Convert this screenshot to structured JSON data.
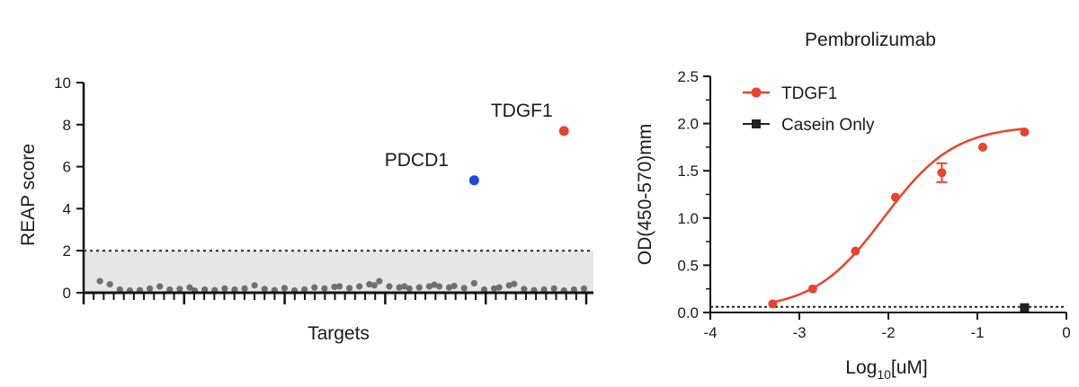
{
  "chart_data": [
    {
      "type": "scatter",
      "xlabel": "Targets",
      "ylabel": "REAP score",
      "ylim": [
        0,
        10
      ],
      "yticks": [
        0,
        2,
        4,
        6,
        8,
        10
      ],
      "threshold": 2,
      "x_range": [
        0,
        100
      ],
      "highlighted": [
        {
          "name": "TDGF1",
          "x": 95,
          "y": 7.7,
          "color": "#e8432d"
        },
        {
          "name": "PDCD1",
          "x": 77,
          "y": 5.35,
          "color": "#1a47e6"
        }
      ],
      "background_points": [
        {
          "x": 2,
          "y": 0.55
        },
        {
          "x": 4,
          "y": 0.4
        },
        {
          "x": 6,
          "y": 0.15
        },
        {
          "x": 8,
          "y": 0.1
        },
        {
          "x": 10,
          "y": 0.12
        },
        {
          "x": 12,
          "y": 0.2
        },
        {
          "x": 14,
          "y": 0.3
        },
        {
          "x": 16,
          "y": 0.15
        },
        {
          "x": 18,
          "y": 0.18
        },
        {
          "x": 20,
          "y": 0.25
        },
        {
          "x": 21,
          "y": 0.1
        },
        {
          "x": 23,
          "y": 0.15
        },
        {
          "x": 25,
          "y": 0.12
        },
        {
          "x": 27,
          "y": 0.2
        },
        {
          "x": 29,
          "y": 0.15
        },
        {
          "x": 31,
          "y": 0.2
        },
        {
          "x": 33,
          "y": 0.35
        },
        {
          "x": 35,
          "y": 0.18
        },
        {
          "x": 37,
          "y": 0.12
        },
        {
          "x": 39,
          "y": 0.22
        },
        {
          "x": 41,
          "y": 0.1
        },
        {
          "x": 43,
          "y": 0.15
        },
        {
          "x": 45,
          "y": 0.25
        },
        {
          "x": 47,
          "y": 0.2
        },
        {
          "x": 49,
          "y": 0.28
        },
        {
          "x": 50,
          "y": 0.3
        },
        {
          "x": 52,
          "y": 0.22
        },
        {
          "x": 54,
          "y": 0.3
        },
        {
          "x": 56,
          "y": 0.4
        },
        {
          "x": 57,
          "y": 0.35
        },
        {
          "x": 58,
          "y": 0.55
        },
        {
          "x": 60,
          "y": 0.3
        },
        {
          "x": 62,
          "y": 0.25
        },
        {
          "x": 63,
          "y": 0.3
        },
        {
          "x": 64,
          "y": 0.2
        },
        {
          "x": 66,
          "y": 0.25
        },
        {
          "x": 68,
          "y": 0.3
        },
        {
          "x": 69,
          "y": 0.38
        },
        {
          "x": 70,
          "y": 0.3
        },
        {
          "x": 72,
          "y": 0.25
        },
        {
          "x": 73,
          "y": 0.32
        },
        {
          "x": 75,
          "y": 0.22
        },
        {
          "x": 77,
          "y": 0.45
        },
        {
          "x": 79,
          "y": 0.15
        },
        {
          "x": 81,
          "y": 0.2
        },
        {
          "x": 82,
          "y": 0.25
        },
        {
          "x": 84,
          "y": 0.35
        },
        {
          "x": 85,
          "y": 0.42
        },
        {
          "x": 87,
          "y": 0.18
        },
        {
          "x": 89,
          "y": 0.12
        },
        {
          "x": 91,
          "y": 0.15
        },
        {
          "x": 93,
          "y": 0.2
        },
        {
          "x": 95,
          "y": 0.1
        },
        {
          "x": 97,
          "y": 0.15
        },
        {
          "x": 99,
          "y": 0.2
        }
      ]
    },
    {
      "type": "line",
      "title": "Pembrolizumab",
      "xlabel": "Log10[uM]",
      "ylabel": "OD(450-570)mm",
      "xlim": [
        -4,
        0
      ],
      "ylim": [
        0,
        2.5
      ],
      "xticks": [
        -4,
        -3,
        -2,
        -1,
        0
      ],
      "yticks": [
        0.0,
        0.5,
        1.0,
        1.5,
        2.0,
        2.5
      ],
      "ytick_labels": [
        "0.0",
        "0.5",
        "1.0",
        "1.5",
        "2.0",
        "2.5"
      ],
      "baseline": 0.06,
      "series": [
        {
          "name": "TDGF1",
          "color": "#e8432d",
          "marker": "circle",
          "x": [
            -3.3,
            -2.85,
            -2.37,
            -1.92,
            -1.4,
            -0.94,
            -0.47
          ],
          "y": [
            0.09,
            0.25,
            0.65,
            1.22,
            1.48,
            1.75,
            1.91
          ],
          "error": [
            0,
            0,
            0,
            0,
            0.1,
            0,
            0
          ],
          "fit": {
            "bottom": 0.03,
            "top": 1.98,
            "logEC50": -2.05,
            "hill": 1.1
          }
        },
        {
          "name": "Casein Only",
          "color": "#222222",
          "marker": "square",
          "x": [
            -0.47
          ],
          "y": [
            0.05
          ]
        }
      ]
    }
  ]
}
